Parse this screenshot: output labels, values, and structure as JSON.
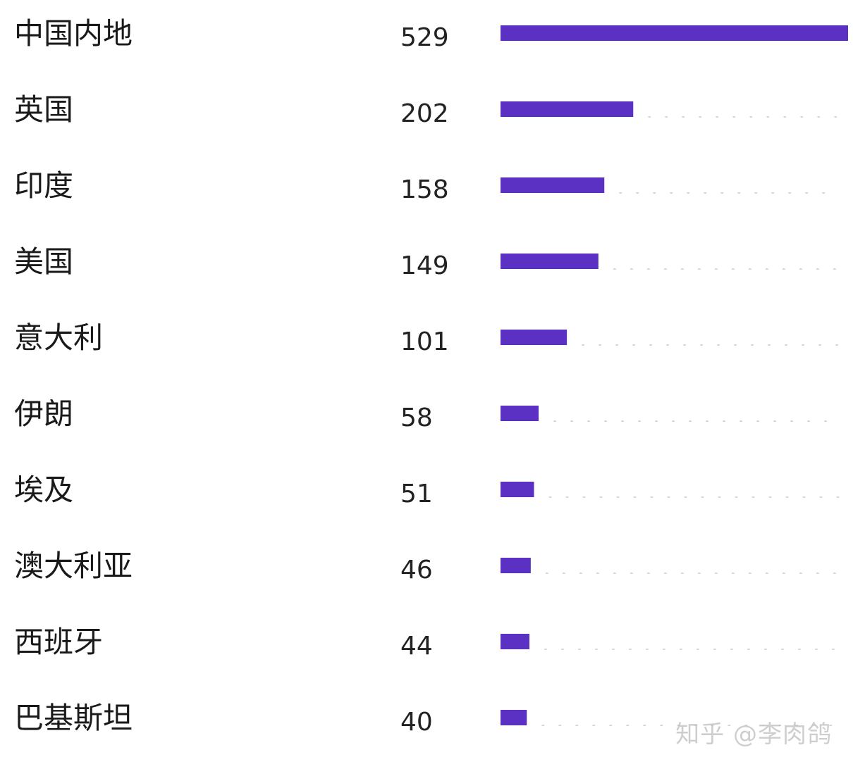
{
  "chart_data": {
    "type": "bar",
    "orientation": "horizontal",
    "categories": [
      "中国内地",
      "英国",
      "印度",
      "美国",
      "意大利",
      "伊朗",
      "埃及",
      "澳大利亚",
      "西班牙",
      "巴基斯坦"
    ],
    "values": [
      529,
      202,
      158,
      149,
      101,
      58,
      51,
      46,
      44,
      40
    ],
    "xlim": [
      0,
      529
    ],
    "bar_color": "#5a31c2",
    "grid": false,
    "legend": "none"
  },
  "watermark": {
    "text": "知乎 @李肉鸽"
  }
}
